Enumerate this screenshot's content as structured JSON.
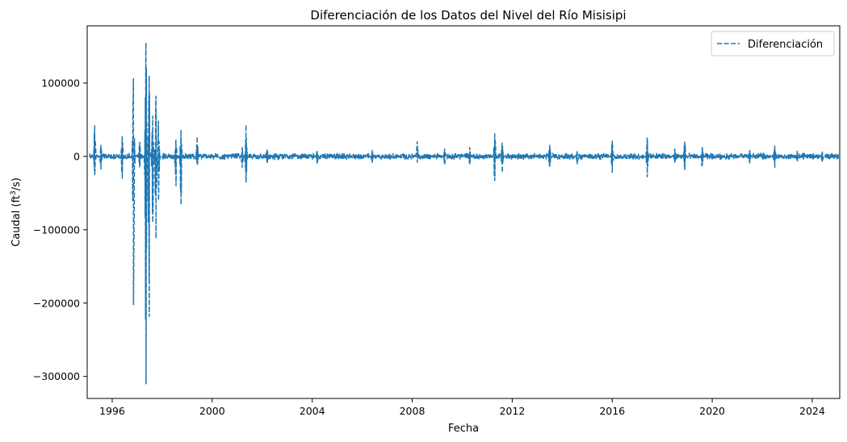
{
  "chart_data": {
    "type": "line",
    "title": "Diferenciación de los Datos del Nivel del Río Misisipi",
    "xlabel": "Fecha",
    "ylabel": "Caudal (ft³/s)",
    "ylabel_parts": [
      "Caudal (ft",
      "3",
      "/s)"
    ],
    "xlim": [
      1995.0,
      2025.1
    ],
    "ylim": [
      -330000,
      178000
    ],
    "x_ticks": [
      1996,
      2000,
      2004,
      2008,
      2012,
      2016,
      2020,
      2024
    ],
    "x_tick_labels": [
      "1996",
      "2000",
      "2004",
      "2008",
      "2012",
      "2016",
      "2020",
      "2024"
    ],
    "y_ticks": [
      -300000,
      -200000,
      -100000,
      0,
      100000
    ],
    "y_tick_labels": [
      "−300000",
      "−200000",
      "−100000",
      "0",
      "100000"
    ],
    "grid": false,
    "legend": "top-right",
    "line_style": "dashed",
    "color": "#1f77b4",
    "series": [
      {
        "name": "Diferenciación",
        "baseline_amplitude": 3000,
        "spikes": [
          [
            1995.3,
            42000,
            -26000
          ],
          [
            1995.55,
            15000,
            -18000
          ],
          [
            1996.4,
            27000,
            -30000
          ],
          [
            1996.85,
            106000,
            -202000
          ],
          [
            1997.1,
            20000,
            -15000
          ],
          [
            1997.35,
            155000,
            -310000
          ],
          [
            1997.48,
            110000,
            -218000
          ],
          [
            1997.62,
            55000,
            -90000
          ],
          [
            1997.75,
            82000,
            -112000
          ],
          [
            1997.85,
            48000,
            -60000
          ],
          [
            1998.55,
            22000,
            -40000
          ],
          [
            1998.75,
            36000,
            -66000
          ],
          [
            1999.4,
            27000,
            -12000
          ],
          [
            2001.35,
            43000,
            -35000
          ],
          [
            2001.2,
            12000,
            -15000
          ],
          [
            2002.2,
            10000,
            -10000
          ],
          [
            2004.2,
            8000,
            -10000
          ],
          [
            2006.4,
            8000,
            -8000
          ],
          [
            2008.2,
            20000,
            -8000
          ],
          [
            2009.3,
            10000,
            -12000
          ],
          [
            2010.3,
            12000,
            -12000
          ],
          [
            2011.3,
            31000,
            -33000
          ],
          [
            2011.6,
            18000,
            -22000
          ],
          [
            2013.5,
            15000,
            -15000
          ],
          [
            2014.6,
            8000,
            -10000
          ],
          [
            2016.0,
            22000,
            -22000
          ],
          [
            2017.4,
            26000,
            -28000
          ],
          [
            2018.5,
            10000,
            -8000
          ],
          [
            2018.9,
            21000,
            -18000
          ],
          [
            2019.6,
            12000,
            -14000
          ],
          [
            2021.5,
            9000,
            -10000
          ],
          [
            2022.5,
            14000,
            -15000
          ],
          [
            2023.4,
            7000,
            -8000
          ],
          [
            2024.4,
            6000,
            -8000
          ]
        ]
      }
    ]
  }
}
